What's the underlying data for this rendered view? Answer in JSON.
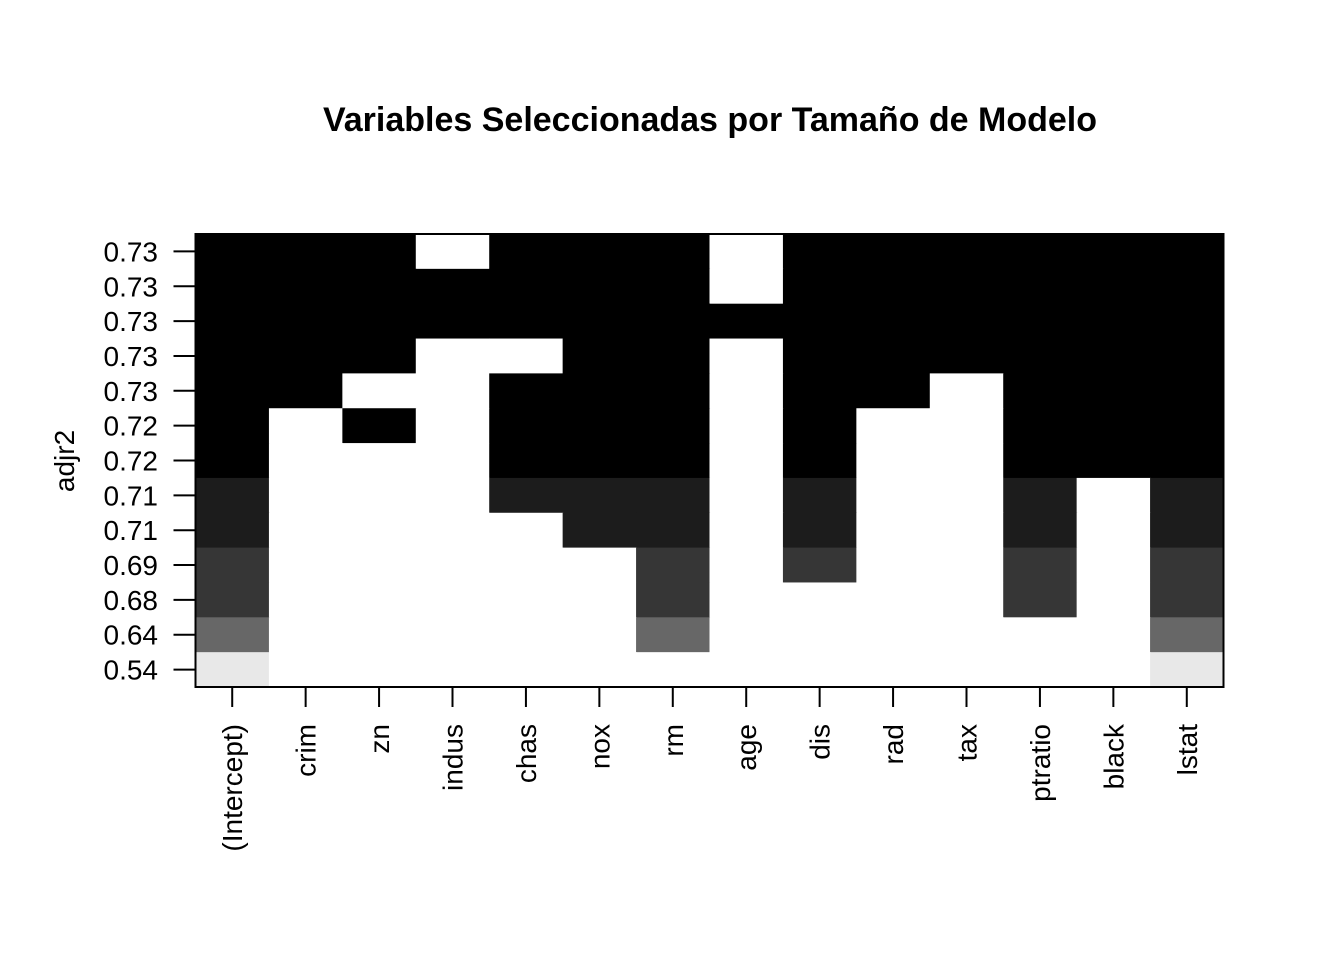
{
  "chart_data": {
    "type": "heatmap",
    "title": "Variables Seleccionadas por Tamaño de Modelo",
    "xlabel": "",
    "ylabel": "adjr2",
    "x_labels": [
      "(Intercept)",
      "crim",
      "zn",
      "indus",
      "chas",
      "nox",
      "rm",
      "age",
      "dis",
      "rad",
      "tax",
      "ptratio",
      "black",
      "lstat"
    ],
    "y_labels": [
      "0.73",
      "0.73",
      "0.73",
      "0.73",
      "0.73",
      "0.72",
      "0.72",
      "0.71",
      "0.71",
      "0.69",
      "0.68",
      "0.64",
      "0.54"
    ],
    "row_levels": [
      0.73,
      0.73,
      0.73,
      0.73,
      0.73,
      0.72,
      0.72,
      0.71,
      0.71,
      0.69,
      0.68,
      0.64,
      0.54
    ],
    "color_scale": {
      "0.73": "#000000",
      "0.72": "#000000",
      "0.71": "#1c1c1c",
      "0.69": "#363636",
      "0.68": "#363636",
      "0.64": "#676767",
      "0.54": "#e8e8e8",
      "none": "#ffffff"
    },
    "included": [
      [
        1,
        1,
        1,
        0,
        1,
        1,
        1,
        0,
        1,
        1,
        1,
        1,
        1,
        1
      ],
      [
        1,
        1,
        1,
        1,
        1,
        1,
        1,
        0,
        1,
        1,
        1,
        1,
        1,
        1
      ],
      [
        1,
        1,
        1,
        1,
        1,
        1,
        1,
        1,
        1,
        1,
        1,
        1,
        1,
        1
      ],
      [
        1,
        1,
        1,
        0,
        0,
        1,
        1,
        0,
        1,
        1,
        1,
        1,
        1,
        1
      ],
      [
        1,
        1,
        0,
        0,
        1,
        1,
        1,
        0,
        1,
        1,
        0,
        1,
        1,
        1
      ],
      [
        1,
        0,
        1,
        0,
        1,
        1,
        1,
        0,
        1,
        0,
        0,
        1,
        1,
        1
      ],
      [
        1,
        0,
        0,
        0,
        1,
        1,
        1,
        0,
        1,
        0,
        0,
        1,
        1,
        1
      ],
      [
        1,
        0,
        0,
        0,
        1,
        1,
        1,
        0,
        1,
        0,
        0,
        1,
        0,
        1
      ],
      [
        1,
        0,
        0,
        0,
        0,
        1,
        1,
        0,
        1,
        0,
        0,
        1,
        0,
        1
      ],
      [
        1,
        0,
        0,
        0,
        0,
        0,
        1,
        0,
        1,
        0,
        0,
        1,
        0,
        1
      ],
      [
        1,
        0,
        0,
        0,
        0,
        0,
        1,
        0,
        0,
        0,
        0,
        1,
        0,
        1
      ],
      [
        1,
        0,
        0,
        0,
        0,
        0,
        1,
        0,
        0,
        0,
        0,
        0,
        0,
        1
      ],
      [
        1,
        0,
        0,
        0,
        0,
        0,
        0,
        0,
        0,
        0,
        0,
        0,
        0,
        1
      ]
    ]
  }
}
